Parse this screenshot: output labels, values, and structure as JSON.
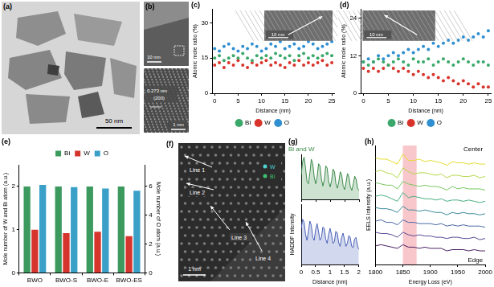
{
  "images": [
    {
      "panel": "(a)",
      "scale_bar": "50 nm"
    },
    {
      "panel": "(b)",
      "scale_bars": [
        "10 nm",
        "1 nm"
      ],
      "annotations": [
        "0.273 nm",
        "(200)"
      ]
    },
    {
      "panel": "(f)",
      "scale_bar": "1 nm",
      "annotations": [
        "Line 1",
        "Line 2",
        "Line 3",
        "Line 4"
      ],
      "atoms": [
        "W",
        "Bi"
      ]
    }
  ],
  "chart_data": [
    {
      "panel": "(c)",
      "type": "scatter",
      "x_label": "Distance (nm)",
      "y_label": "Atomic mole ratio (%)",
      "annotations": [
        "10 nm"
      ],
      "x": [
        0,
        1,
        2,
        3,
        4,
        5,
        6,
        7,
        8,
        9,
        10,
        11,
        12,
        13,
        14,
        15,
        16,
        17,
        18,
        19,
        20,
        21,
        22,
        23,
        24,
        25
      ],
      "series": [
        {
          "name": "Bi",
          "color": "#3aa86a",
          "values": [
            15,
            16,
            14,
            15,
            16,
            15,
            17,
            15,
            14,
            16,
            15,
            16,
            15,
            17,
            16,
            15,
            16,
            14,
            16,
            17,
            15,
            16,
            15,
            16,
            17,
            16
          ]
        },
        {
          "name": "W",
          "color": "#d9342b",
          "values": [
            12,
            13,
            11,
            13,
            12,
            14,
            12,
            11,
            13,
            12,
            13,
            14,
            12,
            13,
            12,
            11,
            13,
            12,
            14,
            12,
            13,
            12,
            13,
            14,
            12,
            13
          ]
        },
        {
          "name": "O",
          "color": "#2f8fd0",
          "values": [
            19,
            18,
            20,
            21,
            19,
            18,
            20,
            19,
            21,
            20,
            18,
            19,
            21,
            20,
            22,
            19,
            20,
            21,
            19,
            20,
            22,
            21,
            19,
            20,
            21,
            22
          ]
        }
      ],
      "xlim": [
        -0.5,
        25.5
      ],
      "xticks": [
        0,
        5,
        10,
        15,
        20,
        25
      ],
      "ylim": [
        0,
        36
      ],
      "yticks": [
        0,
        15,
        30
      ],
      "legend": "bottom",
      "grid": false,
      "marker": "circle"
    },
    {
      "panel": "(d)",
      "type": "scatter",
      "x_label": "Distance (nm)",
      "y_label": "Atomic mole ratio (%)",
      "annotations": [
        "10 nm"
      ],
      "x": [
        0,
        1,
        2,
        3,
        4,
        5,
        6,
        7,
        8,
        9,
        10,
        11,
        12,
        13,
        14,
        15,
        16,
        17,
        18,
        19,
        20,
        21,
        22,
        23,
        24,
        25
      ],
      "series": [
        {
          "name": "Bi",
          "color": "#3aa86a",
          "values": [
            10,
            9,
            10,
            11,
            10,
            9,
            10,
            11,
            10,
            9,
            11,
            10,
            10,
            11,
            9,
            10,
            11,
            10,
            9,
            10,
            11,
            10,
            9,
            10,
            10,
            9
          ]
        },
        {
          "name": "W",
          "color": "#d9342b",
          "values": [
            8,
            7,
            8,
            7,
            8,
            9,
            8,
            7,
            8,
            7,
            6,
            7,
            6,
            5,
            6,
            5,
            4,
            5,
            4,
            3,
            4,
            3,
            2,
            3,
            2,
            2
          ]
        },
        {
          "name": "O",
          "color": "#2f8fd0",
          "values": [
            10,
            11,
            10,
            12,
            11,
            12,
            13,
            12,
            13,
            14,
            13,
            14,
            15,
            14,
            16,
            15,
            16,
            17,
            16,
            17,
            18,
            17,
            18,
            19,
            18,
            20
          ]
        }
      ],
      "xlim": [
        -0.5,
        25.5
      ],
      "xticks": [
        0,
        5,
        10,
        15,
        20,
        25
      ],
      "ylim": [
        0,
        27
      ],
      "yticks": [
        0,
        12,
        24
      ],
      "legend": "bottom",
      "grid": false,
      "marker": "circle"
    },
    {
      "panel": "(e)",
      "type": "bar",
      "y_label": "Mole number of W and Bi atom (a.u.)",
      "y2_label": "Mole number of O atom (a.u.)",
      "categories": [
        "BWO",
        "BWO-S",
        "BWO-E",
        "BWO-ES"
      ],
      "series": [
        {
          "name": "Bi",
          "color": "#3c9a5f",
          "values": [
            2,
            2,
            2,
            2
          ]
        },
        {
          "name": "W",
          "color": "#d6352e",
          "values": [
            1,
            0.92,
            0.95,
            0.85
          ]
        },
        {
          "name": "O",
          "color": "#3aa0c8",
          "values": [
            6.1,
            5.95,
            5.85,
            5.7
          ],
          "axis": "y2"
        }
      ],
      "ylim": [
        0,
        2.5
      ],
      "yticks": [
        0,
        1,
        2
      ],
      "y2lim": [
        0,
        7.5
      ],
      "y2ticks": [
        0,
        2,
        4,
        6
      ],
      "legend": "top",
      "grid": false
    },
    {
      "panel": "(g)",
      "type": "line",
      "title": "Bi and W",
      "x": [
        0,
        0.05,
        0.1,
        0.15,
        0.2,
        0.25,
        0.3,
        0.35,
        0.4,
        0.45,
        0.5,
        0.55,
        0.6,
        0.65,
        0.7,
        0.75,
        0.8,
        0.85,
        0.9,
        0.95,
        1,
        1.05,
        1.1,
        1.15,
        1.2,
        1.25,
        1.3,
        1.35,
        1.4,
        1.45,
        1.5,
        1.55,
        1.6,
        1.65,
        1.7,
        1.75,
        1.8,
        1.85,
        1.9,
        1.95,
        2
      ],
      "series": [
        {
          "color": "#3c8a4a",
          "values": [
            0.55,
            0.85,
            0.95,
            0.7,
            0.4,
            0.35,
            0.6,
            0.9,
            0.8,
            0.5,
            0.35,
            0.5,
            0.8,
            0.75,
            0.45,
            0.3,
            0.45,
            0.75,
            0.7,
            0.4,
            0.28,
            0.42,
            0.68,
            0.62,
            0.35,
            0.25,
            0.4,
            0.62,
            0.55,
            0.3,
            0.22,
            0.38,
            0.58,
            0.5,
            0.28,
            0.2,
            0.35,
            0.52,
            0.45,
            0.25,
            0.2
          ]
        }
      ],
      "xlim": [
        0,
        2
      ],
      "xticks": [
        0,
        0.5,
        1,
        1.5,
        2
      ],
      "ylim": [
        0,
        1
      ],
      "tick_labels": false,
      "grid": false
    },
    {
      "type": "line",
      "x_label": "Distance (nm)",
      "y_label": "HADDF Intensity",
      "x": [
        0,
        0.05,
        0.1,
        0.15,
        0.2,
        0.25,
        0.3,
        0.35,
        0.4,
        0.45,
        0.5,
        0.55,
        0.6,
        0.65,
        0.7,
        0.75,
        0.8,
        0.85,
        0.9,
        0.95,
        1,
        1.05,
        1.1,
        1.15,
        1.2,
        1.25,
        1.3,
        1.35,
        1.4,
        1.45,
        1.5,
        1.55,
        1.6,
        1.65,
        1.7,
        1.75,
        1.8,
        1.85,
        1.9,
        1.95,
        2
      ],
      "series": [
        {
          "color": "#4a62b8",
          "values": [
            0.6,
            0.75,
            0.7,
            0.5,
            0.4,
            0.55,
            0.72,
            0.65,
            0.45,
            0.4,
            0.58,
            0.68,
            0.55,
            0.4,
            0.45,
            0.62,
            0.6,
            0.42,
            0.35,
            0.5,
            0.6,
            0.5,
            0.35,
            0.38,
            0.55,
            0.52,
            0.36,
            0.3,
            0.45,
            0.52,
            0.42,
            0.3,
            0.35,
            0.48,
            0.45,
            0.3,
            0.28,
            0.42,
            0.45,
            0.32,
            0.25
          ]
        }
      ],
      "xlim": [
        0,
        2
      ],
      "xticks": [
        0,
        0.5,
        1,
        1.5,
        2
      ],
      "ylim": [
        0,
        1
      ],
      "tick_labels": "x",
      "grid": false
    },
    {
      "panel": "(h)",
      "type": "line",
      "x_label": "Energy Loss (eV)",
      "y_label": "EELS Intensity (a.u.)",
      "annotations": [
        "Center",
        "Edge"
      ],
      "x": [
        1800,
        1810,
        1820,
        1830,
        1840,
        1850,
        1860,
        1870,
        1880,
        1890,
        1900,
        1910,
        1920,
        1930,
        1940,
        1950,
        1960,
        1970,
        1980,
        1990,
        2000
      ],
      "series": [
        {
          "color": "#e3dc30",
          "values": [
            7.6,
            7.5,
            7.5,
            7.3,
            7.1,
            7.9,
            7.4,
            7.4,
            7.5,
            7.3,
            7.4,
            7.3,
            7.2,
            7.0,
            7.3,
            7.2,
            7.2,
            7.1,
            7.2,
            7.1,
            7.1
          ]
        },
        {
          "color": "#b4d84a",
          "values": [
            6.5,
            6.6,
            6.4,
            6.3,
            6.0,
            6.8,
            6.5,
            6.3,
            6.4,
            6.4,
            6.3,
            6.2,
            6.3,
            6.0,
            6.2,
            6.2,
            6.1,
            6.1,
            6.2,
            6.0,
            6.1
          ]
        },
        {
          "color": "#78c660",
          "values": [
            5.6,
            5.5,
            5.4,
            5.4,
            5.1,
            5.7,
            5.5,
            5.4,
            5.3,
            5.4,
            5.3,
            5.3,
            5.2,
            5.0,
            5.3,
            5.1,
            5.2,
            5.1,
            5.1,
            5.1,
            5.0
          ]
        },
        {
          "color": "#48ae82",
          "values": [
            4.5,
            4.6,
            4.5,
            4.3,
            4.1,
            4.8,
            4.4,
            4.5,
            4.4,
            4.3,
            4.3,
            4.2,
            4.3,
            4.1,
            4.2,
            4.2,
            4.1,
            4.2,
            4.1,
            4.0,
            4.1
          ]
        },
        {
          "color": "#3a8a9a",
          "values": [
            3.6,
            3.5,
            3.5,
            3.4,
            3.2,
            3.7,
            3.4,
            3.4,
            3.3,
            3.4,
            3.3,
            3.2,
            3.2,
            3.0,
            3.2,
            3.1,
            3.2,
            3.1,
            3.1,
            3.0,
            3.1
          ]
        },
        {
          "color": "#4a68a2",
          "values": [
            2.5,
            2.6,
            2.4,
            2.4,
            2.2,
            2.6,
            2.4,
            2.4,
            2.3,
            2.3,
            2.3,
            2.2,
            2.3,
            2.1,
            2.2,
            2.1,
            2.2,
            2.1,
            2.1,
            2.1,
            2.0
          ]
        },
        {
          "color": "#5a4890",
          "values": [
            1.6,
            1.5,
            1.5,
            1.4,
            1.2,
            1.6,
            1.4,
            1.3,
            1.4,
            1.3,
            1.3,
            1.2,
            1.2,
            1.1,
            1.2,
            1.2,
            1.1,
            1.1,
            1.2,
            1.0,
            1.1
          ]
        },
        {
          "color": "#4a1f60",
          "values": [
            0.5,
            0.6,
            0.5,
            0.4,
            0.3,
            0.6,
            0.4,
            0.4,
            0.3,
            0.4,
            0.3,
            0.3,
            0.3,
            0.1,
            0.2,
            0.2,
            0.2,
            0.1,
            0.2,
            0.1,
            0.1
          ]
        }
      ],
      "shaded_range": [
        1850,
        1875
      ],
      "xlim": [
        1800,
        2000
      ],
      "xticks": [
        1800,
        1850,
        1900,
        1950,
        2000
      ],
      "ylim": [
        -1,
        8.6
      ],
      "tick_labels": "x",
      "grid": false
    }
  ]
}
